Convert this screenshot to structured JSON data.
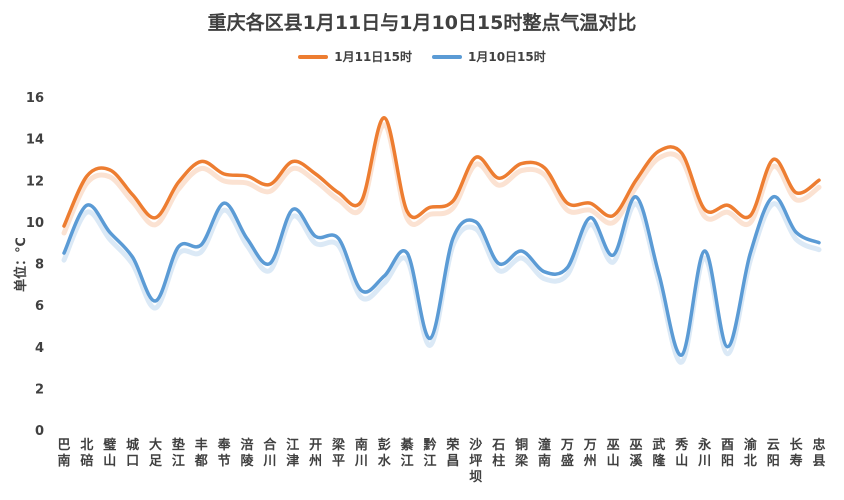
{
  "chart_data": {
    "type": "line",
    "title": "重庆各区县1月11日与1月10日15时整点气温对比",
    "ylabel": "单位：℃",
    "ylim": [
      0,
      16
    ],
    "yticks": [
      0,
      2,
      4,
      6,
      8,
      10,
      12,
      14,
      16
    ],
    "grid": false,
    "legend": "top",
    "categories": [
      "巴南",
      "北碚",
      "璧山",
      "城口",
      "大足",
      "垫江",
      "丰都",
      "奉节",
      "涪陵",
      "合川",
      "江津",
      "开州",
      "梁平",
      "南川",
      "彭水",
      "綦江",
      "黔江",
      "荣昌",
      "沙坪坝",
      "石柱",
      "铜梁",
      "潼南",
      "万盛",
      "万州",
      "巫山",
      "巫溪",
      "武隆",
      "秀山",
      "永川",
      "酉阳",
      "渝北",
      "云阳",
      "长寿",
      "忠县"
    ],
    "series": [
      {
        "name": "1月11日15时",
        "color": "#ED7D31",
        "values": [
          9.8,
          12.2,
          12.5,
          11.3,
          10.2,
          11.9,
          12.9,
          12.3,
          12.2,
          11.8,
          12.9,
          12.3,
          11.4,
          11.0,
          15.0,
          10.5,
          10.7,
          11.0,
          13.1,
          12.1,
          12.8,
          12.6,
          10.9,
          10.9,
          10.3,
          12.0,
          13.4,
          13.3,
          10.6,
          10.8,
          10.3,
          13.0,
          11.4,
          12.0
        ]
      },
      {
        "name": "1月10日15时",
        "color": "#5B9BD5",
        "values": [
          8.5,
          10.8,
          9.5,
          8.3,
          6.2,
          8.8,
          8.9,
          10.9,
          9.2,
          8.0,
          10.6,
          9.3,
          9.2,
          6.7,
          7.4,
          8.5,
          4.4,
          9.2,
          10.0,
          8.0,
          8.6,
          7.6,
          7.8,
          10.2,
          8.4,
          11.2,
          7.5,
          3.6,
          8.6,
          4.0,
          8.5,
          11.2,
          9.5,
          9.0
        ]
      }
    ]
  }
}
